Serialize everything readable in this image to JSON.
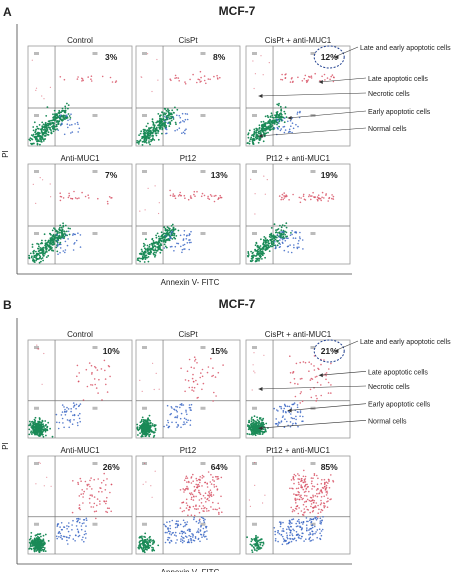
{
  "colors": {
    "normal": "#1a8a57",
    "early": "#3a66c4",
    "late": "#d64a5e",
    "frame": "#9a9a9a",
    "annotation": "#1f3f8f"
  },
  "xlabel": "Annexin V- FITC",
  "ylabel": "PI",
  "conditions": [
    "Control",
    "CisPt",
    "CisPt + anti-MUC1",
    "Anti-MUC1",
    "Pt12",
    "Pt12 + anti-MUC1"
  ],
  "annotation_labels": [
    "Late and early apoptotic cells",
    "Late apoptotic cells",
    "Necrotic cells",
    "Early apoptotic cells",
    "Normal cells"
  ],
  "chart_data": [
    {
      "type": "scatter",
      "panel_label": "A",
      "title": "MCF-7",
      "xlabel": "Annexin V- FITC",
      "ylabel": "PI",
      "series": [
        {
          "name": "Control",
          "apoptotic_percent": 3
        },
        {
          "name": "CisPt",
          "apoptotic_percent": 8
        },
        {
          "name": "CisPt + anti-MUC1",
          "apoptotic_percent": 12
        },
        {
          "name": "Anti-MUC1",
          "apoptotic_percent": 7
        },
        {
          "name": "Pt12",
          "apoptotic_percent": 13
        },
        {
          "name": "Pt12 + anti-MUC1",
          "apoptotic_percent": 19
        }
      ],
      "percent_labels": [
        "3%",
        "8%",
        "12%",
        "7%",
        "13%",
        "19%"
      ],
      "highlighted": "12%"
    },
    {
      "type": "scatter",
      "panel_label": "B",
      "title": "MCF-7",
      "xlabel": "Annexin V- FITC",
      "ylabel": "PI",
      "series": [
        {
          "name": "Control",
          "apoptotic_percent": 10
        },
        {
          "name": "CisPt",
          "apoptotic_percent": 15
        },
        {
          "name": "CisPt + anti-MUC1",
          "apoptotic_percent": 21
        },
        {
          "name": "Anti-MUC1",
          "apoptotic_percent": 26
        },
        {
          "name": "Pt12",
          "apoptotic_percent": 64
        },
        {
          "name": "Pt12 + anti-MUC1",
          "apoptotic_percent": 85
        }
      ],
      "percent_labels": [
        "10%",
        "15%",
        "21%",
        "26%",
        "64%",
        "85%"
      ],
      "highlighted": "21%"
    }
  ]
}
